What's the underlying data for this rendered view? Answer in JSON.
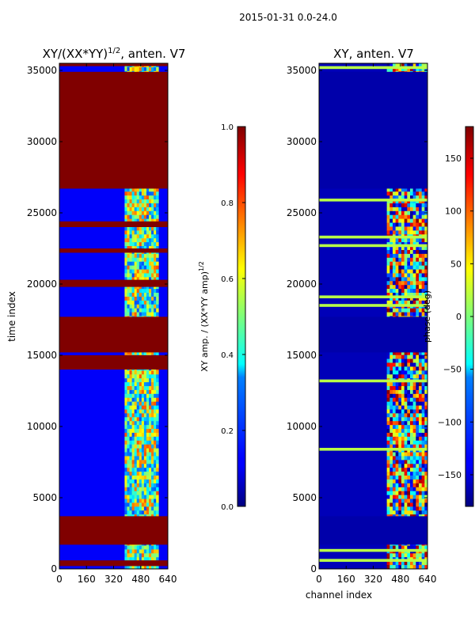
{
  "figure": {
    "suptitle": "2015-01-31 0.0-24.0"
  },
  "chart_data": [
    {
      "type": "heatmap",
      "title": "XY/(XX*YY)^1/2, anten. V7",
      "title_parts": {
        "base": "XY/(XX*YY)",
        "sup": "1/2",
        "suffix": ", anten. V7"
      },
      "xlabel": "",
      "ylabel": "time index",
      "xlim": [
        0,
        640
      ],
      "ylim": [
        0,
        35500
      ],
      "xticks": [
        0,
        160,
        320,
        480,
        640
      ],
      "yticks": [
        0,
        5000,
        10000,
        15000,
        20000,
        25000,
        30000,
        35000
      ],
      "colormap": "jet",
      "colorbar": {
        "label": "XY amp. / (XX*YY amp)^1/2",
        "label_parts": {
          "base": "XY amp. / (XX*YY amp)",
          "sup": "1/2"
        },
        "range": [
          0.0,
          1.0
        ],
        "ticks": [
          0.0,
          0.2,
          0.4,
          0.6,
          0.8,
          1.0
        ],
        "tick_labels": [
          "0.0",
          "0.2",
          "0.4",
          "0.6",
          "0.8",
          "1.0"
        ]
      },
      "background_value": 0.12,
      "active_channels": [
        385,
        585
      ],
      "saturated_time_ranges": [
        [
          26700,
          34900
        ],
        [
          14000,
          15000
        ],
        [
          15200,
          17700
        ],
        [
          19800,
          20300
        ],
        [
          22200,
          22500
        ],
        [
          24000,
          24400
        ],
        [
          200,
          600
        ],
        [
          1700,
          3700
        ],
        [
          35300,
          35500
        ]
      ],
      "saturated_value": 1.0
    },
    {
      "type": "heatmap",
      "title": "XY, anten. V7",
      "xlabel": "channel index",
      "ylabel": "",
      "xlim": [
        0,
        640
      ],
      "ylim": [
        0,
        35500
      ],
      "xticks": [
        0,
        160,
        320,
        480,
        640
      ],
      "yticks": [
        0,
        5000,
        10000,
        15000,
        20000,
        25000,
        30000,
        35000
      ],
      "colormap": "jet",
      "colorbar": {
        "label": "phase (deg)",
        "range": [
          -180,
          180
        ],
        "ticks": [
          -150,
          -100,
          -50,
          0,
          50,
          100,
          150
        ],
        "tick_labels": [
          "−150",
          "−100",
          "−50",
          "0",
          "50",
          "100",
          "150"
        ]
      },
      "background_value": -160,
      "active_channels": [
        400,
        640
      ],
      "uniform_time_ranges": [
        [
          26700,
          34900
        ],
        [
          15200,
          17700
        ],
        [
          1700,
          3700
        ]
      ],
      "uniform_value": -165,
      "streak_time_ranges": [
        [
          35100,
          35300
        ],
        [
          13100,
          13300
        ],
        [
          8300,
          8500
        ],
        [
          1200,
          1400
        ],
        [
          500,
          700
        ],
        [
          25800,
          26000
        ],
        [
          23200,
          23400
        ],
        [
          22600,
          22800
        ],
        [
          19000,
          19200
        ],
        [
          18400,
          18600
        ]
      ],
      "streak_value": 20
    }
  ],
  "colors": {
    "jet_low": "#00007f",
    "jet_high": "#7f0000",
    "axes": "#000000",
    "background": "#ffffff"
  }
}
